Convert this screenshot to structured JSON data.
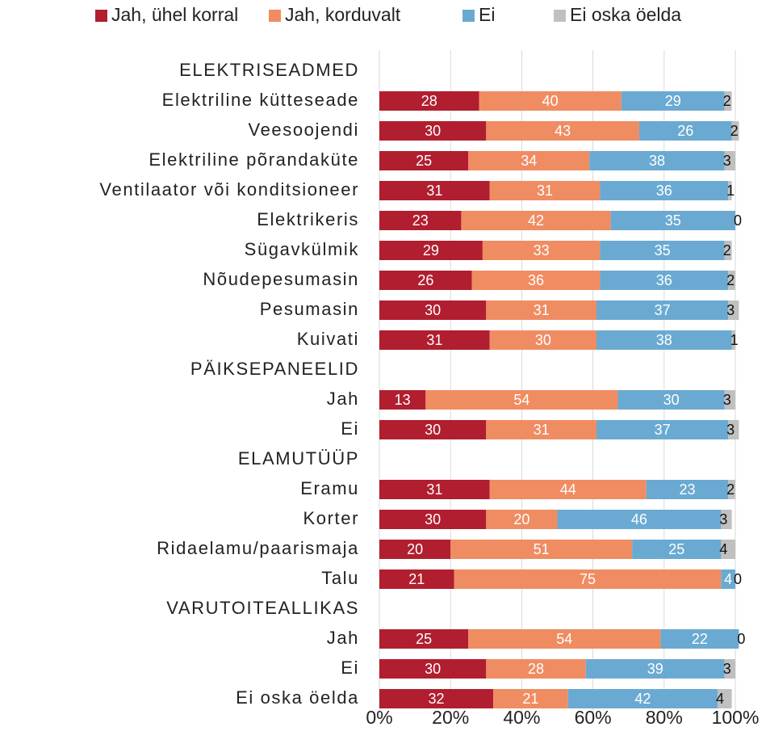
{
  "chart_data": {
    "type": "stacked-barh",
    "categories": [
      "ELEKTRISEADMED",
      "Elektriline kütteseade",
      "Veesoojendi",
      "Elektriline põrandaküte",
      "Ventilaator või konditsioneer",
      "Elektrikeris",
      "Sügavkülmik",
      "Nõudepesumasin",
      "Pesumasin",
      "Kuivati",
      "PÄIKSEPANEELID",
      "Jah",
      "Ei",
      "ELAMUTÜÜP",
      "Eramu",
      "Korter",
      "Ridaelamu/paarismaja",
      "Talu",
      "VARUTOITEALLIKAS",
      "Jah",
      "Ei",
      "Ei oska öelda"
    ],
    "series": [
      {
        "name": "Jah, ühel korral",
        "color": "#b11e2f",
        "values": [
          null,
          28,
          30,
          25,
          31,
          23,
          29,
          26,
          30,
          31,
          null,
          13,
          30,
          null,
          31,
          30,
          20,
          21,
          null,
          25,
          30,
          32
        ]
      },
      {
        "name": "Jah, korduvalt",
        "color": "#f08c62",
        "values": [
          null,
          40,
          43,
          34,
          31,
          42,
          33,
          36,
          31,
          30,
          null,
          54,
          31,
          null,
          44,
          20,
          51,
          75,
          null,
          54,
          28,
          21
        ]
      },
      {
        "name": "Ei",
        "color": "#6aaad2",
        "values": [
          null,
          29,
          26,
          38,
          36,
          35,
          35,
          36,
          37,
          38,
          null,
          30,
          37,
          null,
          23,
          46,
          25,
          4,
          null,
          22,
          39,
          42
        ]
      },
      {
        "name": "Ei oska öelda",
        "color": "#c0c0c0",
        "values": [
          null,
          2,
          2,
          3,
          1,
          0,
          2,
          2,
          3,
          1,
          null,
          3,
          3,
          null,
          2,
          3,
          4,
          0,
          null,
          0,
          3,
          4
        ]
      }
    ],
    "xlim": [
      0,
      100
    ],
    "xticks": [
      {
        "value": 0,
        "label": "0%"
      },
      {
        "value": 20,
        "label": "20%"
      },
      {
        "value": 40,
        "label": "40%"
      },
      {
        "value": 60,
        "label": "60%"
      },
      {
        "value": 80,
        "label": "80%"
      },
      {
        "value": 100,
        "label": "100%"
      }
    ],
    "grid": true,
    "legend": "top"
  }
}
